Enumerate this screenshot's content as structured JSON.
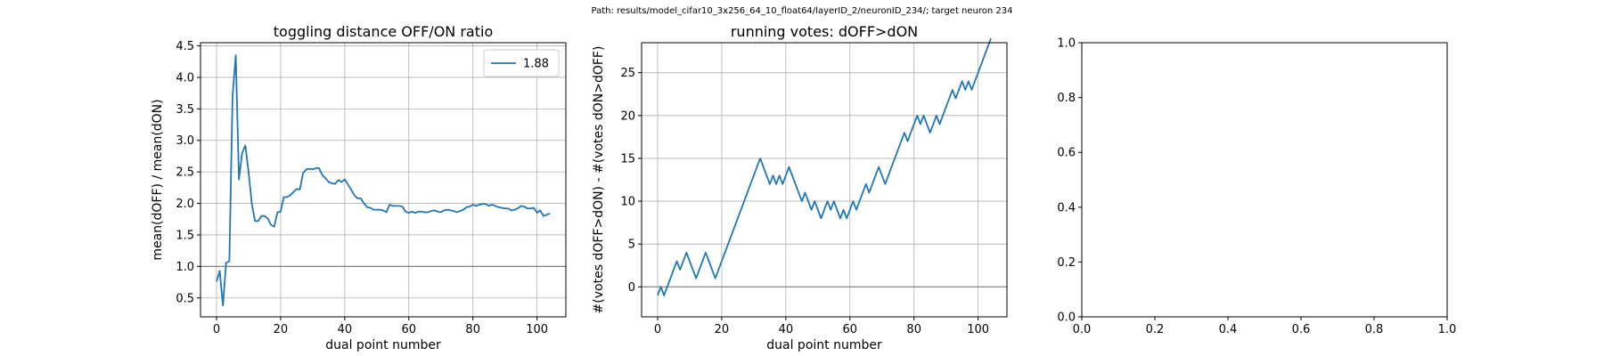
{
  "suptitle": "Path: results/model_cifar10_3x256_64_10_float64/layerID_2/neuronID_234/; target neuron 234",
  "colors": {
    "line": "#1f77b4",
    "grid": "#b0b0b0",
    "refline": "#808080",
    "axes": "#000000"
  },
  "chart_data": [
    {
      "type": "line",
      "title": "toggling distance OFF/ON ratio",
      "xlabel": "dual point number",
      "ylabel": "mean(dOFF) / mean(dON)",
      "xlim": [
        -5,
        109
      ],
      "ylim": [
        0.2,
        4.55
      ],
      "xticks": [
        0,
        20,
        40,
        60,
        80,
        100
      ],
      "yticks": [
        0.5,
        1.0,
        1.5,
        2.0,
        2.5,
        3.0,
        3.5,
        4.0,
        4.5
      ],
      "grid": true,
      "legend": {
        "position": "upper right",
        "entries": [
          "1.88"
        ]
      },
      "hline": 1.0,
      "series": [
        {
          "name": "1.88",
          "x": [
            0,
            1,
            2,
            3,
            4,
            5,
            6,
            7,
            8,
            9,
            10,
            11,
            12,
            13,
            14,
            15,
            16,
            17,
            18,
            19,
            20,
            21,
            22,
            23,
            24,
            25,
            26,
            27,
            28,
            29,
            30,
            31,
            32,
            33,
            34,
            35,
            36,
            37,
            38,
            39,
            40,
            41,
            42,
            43,
            44,
            45,
            46,
            47,
            48,
            49,
            50,
            51,
            52,
            53,
            54,
            55,
            56,
            57,
            58,
            59,
            60,
            61,
            62,
            63,
            64,
            65,
            66,
            67,
            68,
            69,
            70,
            71,
            72,
            73,
            74,
            75,
            76,
            77,
            78,
            79,
            80,
            81,
            82,
            83,
            84,
            85,
            86,
            87,
            88,
            89,
            90,
            91,
            92,
            93,
            94,
            95,
            96,
            97,
            98,
            99,
            100,
            101,
            102,
            103,
            104
          ],
          "y": [
            0.76,
            0.93,
            0.38,
            1.06,
            1.08,
            3.7,
            4.35,
            2.38,
            2.8,
            2.92,
            2.5,
            2.0,
            1.72,
            1.72,
            1.8,
            1.8,
            1.76,
            1.66,
            1.63,
            1.86,
            1.87,
            2.1,
            2.1,
            2.13,
            2.18,
            2.23,
            2.22,
            2.48,
            2.54,
            2.55,
            2.54,
            2.56,
            2.56,
            2.45,
            2.4,
            2.34,
            2.32,
            2.31,
            2.37,
            2.34,
            2.38,
            2.3,
            2.22,
            2.13,
            2.08,
            2.08,
            2.0,
            1.94,
            1.93,
            1.9,
            1.9,
            1.9,
            1.89,
            1.86,
            1.98,
            1.96,
            1.96,
            1.96,
            1.95,
            1.87,
            1.85,
            1.87,
            1.85,
            1.87,
            1.87,
            1.86,
            1.86,
            1.88,
            1.89,
            1.87,
            1.86,
            1.89,
            1.9,
            1.89,
            1.88,
            1.86,
            1.88,
            1.9,
            1.94,
            1.95,
            1.98,
            1.96,
            1.98,
            1.99,
            1.99,
            1.96,
            1.98,
            1.96,
            1.94,
            1.93,
            1.92,
            1.92,
            1.89,
            1.9,
            1.92,
            1.96,
            1.95,
            1.92,
            1.92,
            1.93,
            1.85,
            1.89,
            1.8,
            1.82,
            1.84
          ]
        }
      ]
    },
    {
      "type": "line",
      "title": "running votes: dOFF>dON",
      "xlabel": "dual point number",
      "ylabel": "#(votes dOFF>dON) - #(votes dON>dOFF)",
      "xlim": [
        -5,
        109
      ],
      "ylim": [
        -3.5,
        28.5
      ],
      "xticks": [
        0,
        20,
        40,
        60,
        80,
        100
      ],
      "yticks": [
        0,
        5,
        10,
        15,
        20,
        25
      ],
      "grid": true,
      "hline": 0,
      "series": [
        {
          "x": [
            0,
            1,
            2,
            3,
            4,
            5,
            6,
            7,
            8,
            9,
            10,
            11,
            12,
            13,
            14,
            15,
            16,
            17,
            18,
            19,
            20,
            21,
            22,
            23,
            24,
            25,
            26,
            27,
            28,
            29,
            30,
            31,
            32,
            33,
            34,
            35,
            36,
            37,
            38,
            39,
            40,
            41,
            42,
            43,
            44,
            45,
            46,
            47,
            48,
            49,
            50,
            51,
            52,
            53,
            54,
            55,
            56,
            57,
            58,
            59,
            60,
            61,
            62,
            63,
            64,
            65,
            66,
            67,
            68,
            69,
            70,
            71,
            72,
            73,
            74,
            75,
            76,
            77,
            78,
            79,
            80,
            81,
            82,
            83,
            84,
            85,
            86,
            87,
            88,
            89,
            90,
            91,
            92,
            93,
            94,
            95,
            96,
            97,
            98,
            99,
            100,
            101,
            102,
            103,
            104
          ],
          "y": [
            -1,
            0,
            -1,
            0,
            1,
            2,
            3,
            2,
            3,
            4,
            3,
            2,
            1,
            2,
            3,
            4,
            3,
            2,
            1,
            2,
            3,
            4,
            5,
            6,
            7,
            8,
            9,
            10,
            11,
            12,
            13,
            14,
            15,
            14,
            13,
            12,
            13,
            12,
            13,
            12,
            13,
            14,
            13,
            12,
            11,
            10,
            11,
            10,
            9,
            10,
            9,
            8,
            9,
            10,
            9,
            10,
            9,
            8,
            9,
            8,
            9,
            10,
            9,
            10,
            11,
            12,
            11,
            12,
            13,
            14,
            13,
            12,
            13,
            14,
            15,
            16,
            17,
            18,
            17,
            18,
            19,
            20,
            19,
            20,
            19,
            18,
            19,
            20,
            19,
            20,
            21,
            22,
            23,
            22,
            23,
            24,
            23,
            24,
            23,
            24,
            25,
            26,
            27,
            28,
            29
          ]
        }
      ]
    },
    {
      "type": "line",
      "title": "",
      "xlabel": "",
      "ylabel": "",
      "xlim": [
        0,
        1
      ],
      "ylim": [
        0,
        1
      ],
      "xticks": [
        0.0,
        0.2,
        0.4,
        0.6,
        0.8,
        1.0
      ],
      "yticks": [
        0.0,
        0.2,
        0.4,
        0.6,
        0.8,
        1.0
      ],
      "grid": false,
      "series": []
    }
  ]
}
